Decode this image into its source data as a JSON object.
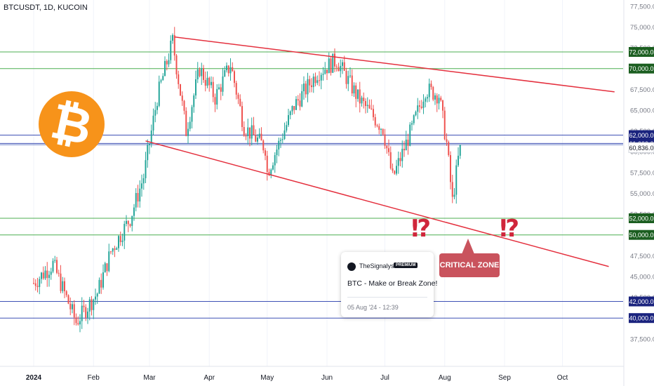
{
  "ticker": "BTCUSDT, 1D, KUCOIN",
  "colors": {
    "up": "#26a69a",
    "down": "#ef5350",
    "trend": "#e4303e",
    "level_green": "#4caf50",
    "level_blue": "#3f51b5",
    "current_price": "#6f82c8",
    "bitcoin_orange": "#f7931a",
    "critical_bg": "#c9535d"
  },
  "logo": {
    "glyph": "₿",
    "icon": "bitcoin-icon"
  },
  "idea_card": {
    "author": "TheSignalyst",
    "badge": "PREMIUM",
    "title": "BTC - Make or Break Zone!",
    "date": "05 Aug '24 - 12:39"
  },
  "critical_zone": "CRITICAL ZONE",
  "exclamations": [
    "⁉",
    "⁉"
  ],
  "chart_data": {
    "type": "candlestick",
    "symbol": "BTCUSDT",
    "interval": "1D",
    "exchange": "KUCOIN",
    "ylim": [
      36000,
      78000
    ],
    "y_ticks": [
      {
        "value": 37500,
        "label": "37,500.0"
      },
      {
        "value": 40000,
        "label": "40,000.0"
      },
      {
        "value": 42500,
        "label": "42,500.0"
      },
      {
        "value": 45000,
        "label": "45,000.0"
      },
      {
        "value": 47500,
        "label": "47,500.0"
      },
      {
        "value": 50000,
        "label": "50,000.0"
      },
      {
        "value": 52500,
        "label": "52,500.0"
      },
      {
        "value": 55000,
        "label": "55,000.0"
      },
      {
        "value": 57500,
        "label": "57,500.0"
      },
      {
        "value": 60000,
        "label": "60,000.0"
      },
      {
        "value": 62500,
        "label": "62,500.0"
      },
      {
        "value": 65000,
        "label": "65,000.0"
      },
      {
        "value": 67500,
        "label": "67,500.0"
      },
      {
        "value": 70000,
        "label": "70,000.0"
      },
      {
        "value": 72500,
        "label": "72,500.0"
      },
      {
        "value": 75000,
        "label": "75,000.0"
      },
      {
        "value": 77500,
        "label": "77,500.0"
      }
    ],
    "x_ticks": [
      {
        "month": 0,
        "label": "2024"
      },
      {
        "month": 1,
        "label": "Feb"
      },
      {
        "month": 2,
        "label": "Mar"
      },
      {
        "month": 3,
        "label": "Apr"
      },
      {
        "month": 4,
        "label": "May"
      },
      {
        "month": 5,
        "label": "Jun"
      },
      {
        "month": 6,
        "label": "Jul"
      },
      {
        "month": 7,
        "label": "Aug"
      },
      {
        "month": 8,
        "label": "Sep"
      },
      {
        "month": 9,
        "label": "Oct"
      }
    ],
    "horizontal_levels": [
      {
        "value": 72000,
        "label": "72,000.0",
        "color": "green"
      },
      {
        "value": 70000,
        "label": "70,000.0",
        "color": "green"
      },
      {
        "value": 62000,
        "label": "62,000.0",
        "color": "blue"
      },
      {
        "value": 61000,
        "label": "61,000.0",
        "color": "blue"
      },
      {
        "value": 52000,
        "label": "52,000.0",
        "color": "green"
      },
      {
        "value": 50000,
        "label": "50,000.0",
        "color": "green"
      },
      {
        "value": 42000,
        "label": "42,000.0",
        "color": "blue"
      },
      {
        "value": 40000,
        "label": "40,000.0",
        "color": "blue"
      }
    ],
    "current_price": {
      "value": 60836,
      "label": "60,836.0"
    },
    "trendlines": [
      {
        "from": {
          "date": "2024-03-14",
          "price": 73800
        },
        "to": {
          "date": "2024-10-28",
          "price": 67200
        }
      },
      {
        "from": {
          "date": "2024-02-28",
          "price": 61300
        },
        "to": {
          "date": "2024-10-25",
          "price": 46200
        }
      }
    ],
    "price_path": [
      {
        "date": "2024-01-01",
        "close": 44200
      },
      {
        "date": "2024-01-11",
        "close": 46500
      },
      {
        "date": "2024-01-23",
        "close": 39500
      },
      {
        "date": "2024-02-03",
        "close": 43000
      },
      {
        "date": "2024-02-10",
        "close": 48000
      },
      {
        "date": "2024-02-20",
        "close": 52000
      },
      {
        "date": "2024-02-27",
        "close": 57000
      },
      {
        "date": "2024-03-05",
        "close": 66500
      },
      {
        "date": "2024-03-13",
        "close": 73300
      },
      {
        "date": "2024-03-20",
        "close": 62500
      },
      {
        "date": "2024-03-27",
        "close": 70000
      },
      {
        "date": "2024-04-04",
        "close": 66500
      },
      {
        "date": "2024-04-12",
        "close": 70500
      },
      {
        "date": "2024-04-19",
        "close": 63000
      },
      {
        "date": "2024-04-30",
        "close": 60500
      },
      {
        "date": "2024-05-01",
        "close": 57500
      },
      {
        "date": "2024-05-15",
        "close": 65500
      },
      {
        "date": "2024-05-27",
        "close": 69500
      },
      {
        "date": "2024-06-06",
        "close": 71000
      },
      {
        "date": "2024-06-17",
        "close": 66500
      },
      {
        "date": "2024-06-30",
        "close": 62800
      },
      {
        "date": "2024-07-05",
        "close": 56800
      },
      {
        "date": "2024-07-15",
        "close": 62800
      },
      {
        "date": "2024-07-22",
        "close": 67500
      },
      {
        "date": "2024-07-29",
        "close": 66800
      },
      {
        "date": "2024-08-02",
        "close": 61000
      },
      {
        "date": "2024-08-05",
        "close": 54000
      },
      {
        "date": "2024-08-09",
        "close": 60836
      }
    ]
  }
}
